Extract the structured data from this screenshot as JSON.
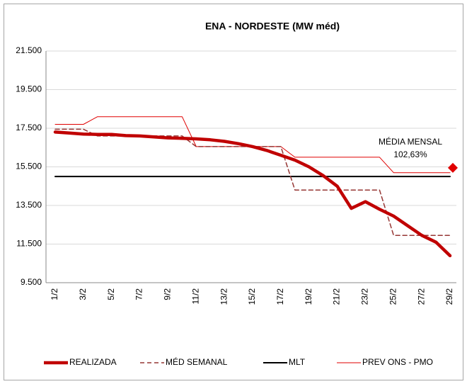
{
  "chart_data": {
    "type": "line",
    "title": "ENA - NORDESTE (MW méd)",
    "categories": [
      "1/2",
      null,
      "3/2",
      null,
      "5/2",
      null,
      "7/2",
      null,
      "9/2",
      null,
      "11/2",
      null,
      "13/2",
      null,
      "15/2",
      null,
      "17/2",
      null,
      "19/2",
      null,
      "21/2",
      null,
      "23/2",
      null,
      "25/2",
      null,
      "27/2",
      null,
      "29/2"
    ],
    "series": [
      {
        "name": "REALIZADA",
        "color": "#c00000",
        "width": 4.5,
        "dash": false,
        "values": [
          17300,
          17250,
          17200,
          17180,
          17180,
          17120,
          17100,
          17050,
          17000,
          16980,
          16950,
          16900,
          16820,
          16700,
          16550,
          16350,
          16100,
          15850,
          15500,
          15050,
          14500,
          13350,
          13700,
          13300,
          12950,
          12450,
          11950,
          11600,
          10900
        ]
      },
      {
        "name": "MÉD SEMANAL",
        "color": "#963634",
        "width": 1.5,
        "dash": true,
        "values": [
          17450,
          17450,
          17450,
          17100,
          17100,
          17100,
          17100,
          17100,
          17100,
          17100,
          16550,
          16550,
          16550,
          16550,
          16550,
          16550,
          16550,
          14300,
          14300,
          14300,
          14300,
          14300,
          14300,
          14300,
          11950,
          11950,
          11950,
          11950,
          11950
        ]
      },
      {
        "name": "MLT",
        "color": "#000000",
        "width": 2,
        "dash": false,
        "values": [
          15000,
          15000,
          15000,
          15000,
          15000,
          15000,
          15000,
          15000,
          15000,
          15000,
          15000,
          15000,
          15000,
          15000,
          15000,
          15000,
          15000,
          15000,
          15000,
          15000,
          15000,
          15000,
          15000,
          15000,
          15000,
          15000,
          15000,
          15000,
          15000
        ]
      },
      {
        "name": "PREV ONS - PMO",
        "color": "#e00000",
        "width": 1,
        "dash": false,
        "values": [
          17700,
          17700,
          17700,
          18100,
          18100,
          18100,
          18100,
          18100,
          18100,
          18100,
          16550,
          16550,
          16550,
          16550,
          16550,
          16550,
          16550,
          16000,
          16000,
          16000,
          16000,
          16000,
          16000,
          16000,
          15200,
          15200,
          15200,
          15200,
          15200
        ]
      }
    ],
    "ylim": [
      9500,
      21500
    ],
    "yticks": [
      {
        "value": 9500,
        "label": "9.500"
      },
      {
        "value": 11500,
        "label": "11.500"
      },
      {
        "value": 13500,
        "label": "13.500"
      },
      {
        "value": 15500,
        "label": "15.500"
      },
      {
        "value": 17500,
        "label": "17.500"
      },
      {
        "value": 19500,
        "label": "19.500"
      },
      {
        "value": 21500,
        "label": "21.500"
      }
    ],
    "grid": true,
    "annotations": [
      "MÉDIA MENSAL",
      "102,63%"
    ],
    "media_mensal_marker": {
      "value": 15450,
      "color": "#e00000"
    }
  }
}
